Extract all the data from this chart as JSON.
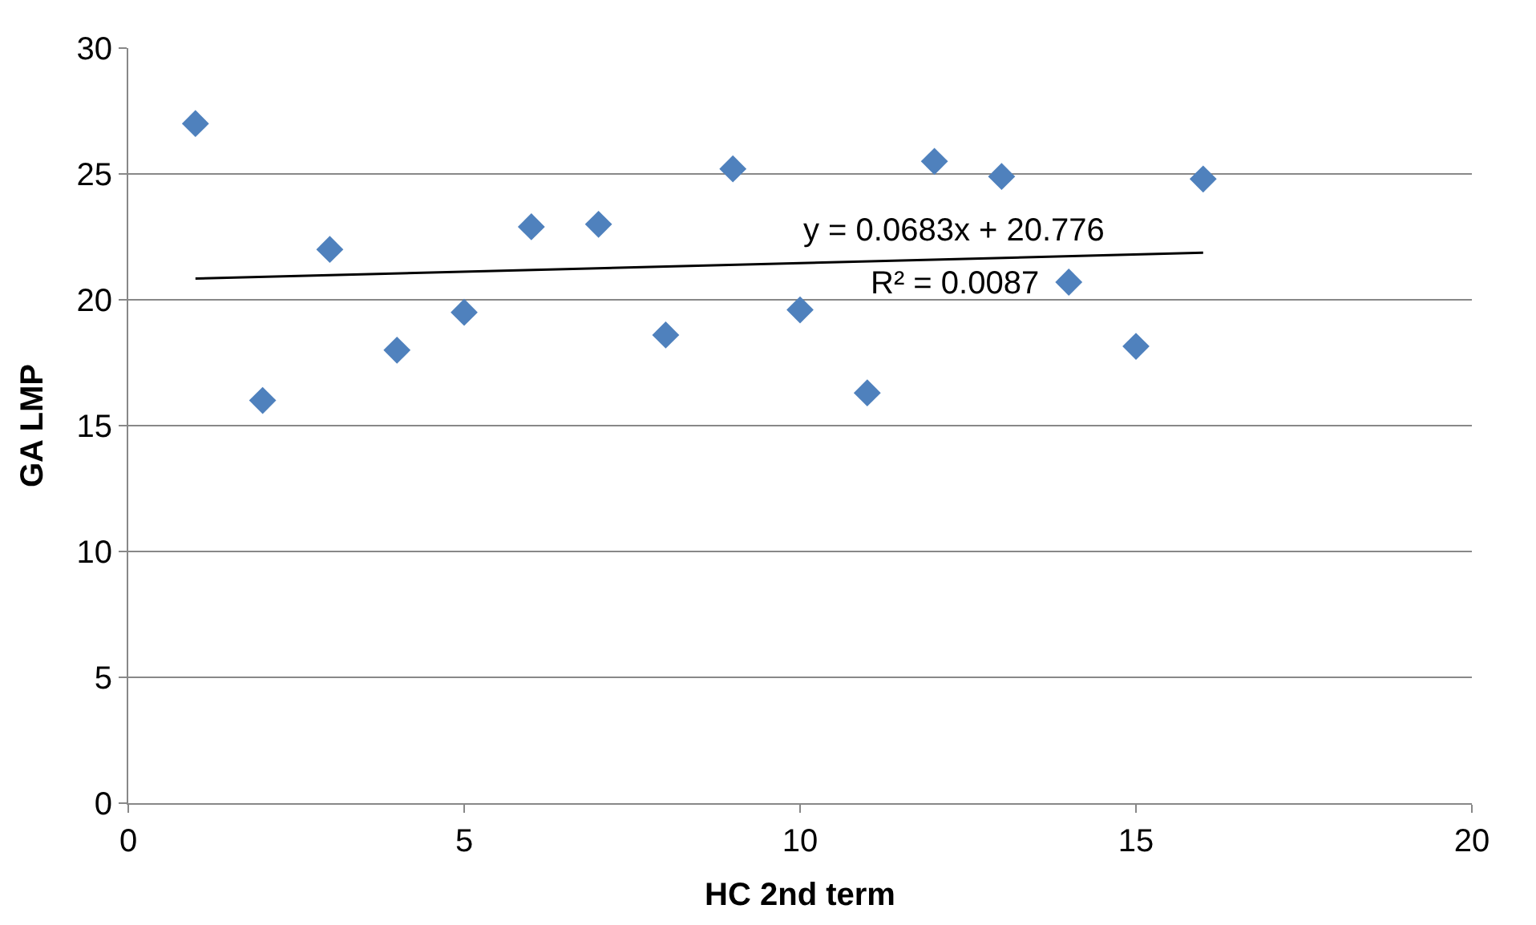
{
  "chart_data": {
    "type": "scatter",
    "xlabel": "HC 2nd term",
    "ylabel": "GA LMP",
    "xlim": [
      0,
      20
    ],
    "xticks": [
      0,
      5,
      10,
      15,
      20
    ],
    "ylim": [
      0,
      30
    ],
    "yticks": [
      0,
      5,
      10,
      15,
      20,
      25,
      30
    ],
    "grid": "y",
    "marker": "diamond",
    "series": [
      {
        "color": "#4f81bd",
        "x": [
          1,
          2,
          3,
          4,
          5,
          6,
          7,
          8,
          9,
          10,
          11,
          12,
          13,
          14,
          15,
          16
        ],
        "values": [
          27,
          16,
          22,
          18,
          19.5,
          22.9,
          23,
          18.6,
          25.2,
          19.6,
          16.3,
          25.5,
          24.9,
          20.7,
          18.15,
          24.8
        ]
      },
      {
        "type": "line",
        "color": "#000000",
        "marker": "none",
        "line_style": "solid",
        "x": [
          1,
          16
        ],
        "values": [
          20.84,
          21.87
        ]
      }
    ],
    "annotations": [
      "y = 0.0683x + 20.776",
      "R² = 0.0087"
    ]
  }
}
